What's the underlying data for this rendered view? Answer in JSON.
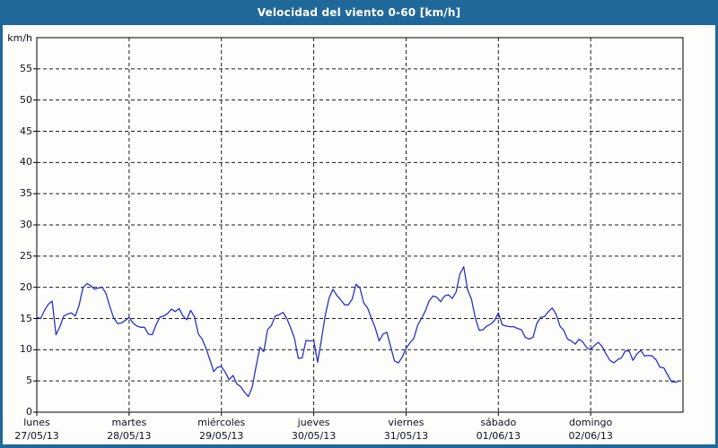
{
  "title": "Velocidad del viento 0-60 [km/h]",
  "colors": {
    "frame_blue": "#20689a",
    "titlebar_bg": "#20689a",
    "titlebar_text": "#ffffff",
    "panel_bg": "#fdfdfb",
    "plot_border": "#000000",
    "grid": "#1c1c1c",
    "line": "#2a33c0",
    "tick_text": "#101020"
  },
  "y_axis": {
    "unit_label": "km/h",
    "ticks": [
      0,
      5,
      10,
      15,
      20,
      25,
      30,
      35,
      40,
      45,
      50,
      55
    ],
    "min": 0,
    "max": 60
  },
  "x_axis": {
    "days": [
      {
        "name": "lunes",
        "date": "27/05/13"
      },
      {
        "name": "martes",
        "date": "28/05/13"
      },
      {
        "name": "miércoles",
        "date": "29/05/13"
      },
      {
        "name": "jueves",
        "date": "30/05/13"
      },
      {
        "name": "viernes",
        "date": "31/05/13"
      },
      {
        "name": "sábado",
        "date": "01/06/13"
      },
      {
        "name": "domingo",
        "date": "02/06/13"
      }
    ]
  },
  "chart_data": {
    "type": "line",
    "title": "Velocidad del viento 0-60 [km/h]",
    "ylabel": "km/h",
    "ylim": [
      0,
      60
    ],
    "y_ticks": [
      0,
      5,
      10,
      15,
      20,
      25,
      30,
      35,
      40,
      45,
      50,
      55
    ],
    "x_unit": "hour",
    "x_range_hours": [
      0,
      168
    ],
    "x_day_labels": [
      "lunes 27/05/13",
      "martes 28/05/13",
      "miércoles 29/05/13",
      "jueves 30/05/13",
      "viernes 31/05/13",
      "sábado 01/06/13",
      "domingo 02/06/13"
    ],
    "grid": "dashed",
    "legend": false,
    "series": [
      {
        "name": "Velocidad del viento",
        "unit": "km/h",
        "x_step_hours": 1,
        "values": [
          15.2,
          15.0,
          16.3,
          17.3,
          17.8,
          12.4,
          13.7,
          15.4,
          15.7,
          15.9,
          15.4,
          17.1,
          19.9,
          20.6,
          20.3,
          19.7,
          19.9,
          20.0,
          19.0,
          16.9,
          15.1,
          14.2,
          14.3,
          14.7,
          15.2,
          14.3,
          13.8,
          13.6,
          13.6,
          12.5,
          12.4,
          14.0,
          15.2,
          15.4,
          15.8,
          16.5,
          16.1,
          16.6,
          15.4,
          14.8,
          16.3,
          15.3,
          12.5,
          11.7,
          10.2,
          8.4,
          6.5,
          7.2,
          7.3,
          6.4,
          5.2,
          5.9,
          4.5,
          4.1,
          3.2,
          2.5,
          4.0,
          7.3,
          10.4,
          9.7,
          13.2,
          13.9,
          15.4,
          15.6,
          16.0,
          15.0,
          13.5,
          11.8,
          8.6,
          8.7,
          11.5,
          11.4,
          11.5,
          8.0,
          11.6,
          15.5,
          18.3,
          19.7,
          18.7,
          18.0,
          17.2,
          17.2,
          18.1,
          20.5,
          19.9,
          17.5,
          16.7,
          15.0,
          13.5,
          11.4,
          12.5,
          12.8,
          10.5,
          8.2,
          7.9,
          8.8,
          10.2,
          11.1,
          11.8,
          13.9,
          15.0,
          16.2,
          17.8,
          18.6,
          18.4,
          17.7,
          18.6,
          18.8,
          18.2,
          19.2,
          22.1,
          23.3,
          19.6,
          18.1,
          15.1,
          13.1,
          13.2,
          13.8,
          14.1,
          14.7,
          15.9,
          14.0,
          13.8,
          13.7,
          13.7,
          13.4,
          13.2,
          12.0,
          11.7,
          12.0,
          14.2,
          15.2,
          15.3,
          16.1,
          16.7,
          15.7,
          13.8,
          13.1,
          11.7,
          11.4,
          10.9,
          11.7,
          11.2,
          10.3,
          10.0,
          10.7,
          11.2,
          10.5,
          9.3,
          8.3,
          7.9,
          8.4,
          8.7,
          9.8,
          9.8,
          8.3,
          9.3,
          9.9,
          9.0,
          9.1,
          9.0,
          8.4,
          7.2,
          7.1,
          6.0,
          4.9,
          4.8,
          5.0
        ]
      }
    ]
  }
}
